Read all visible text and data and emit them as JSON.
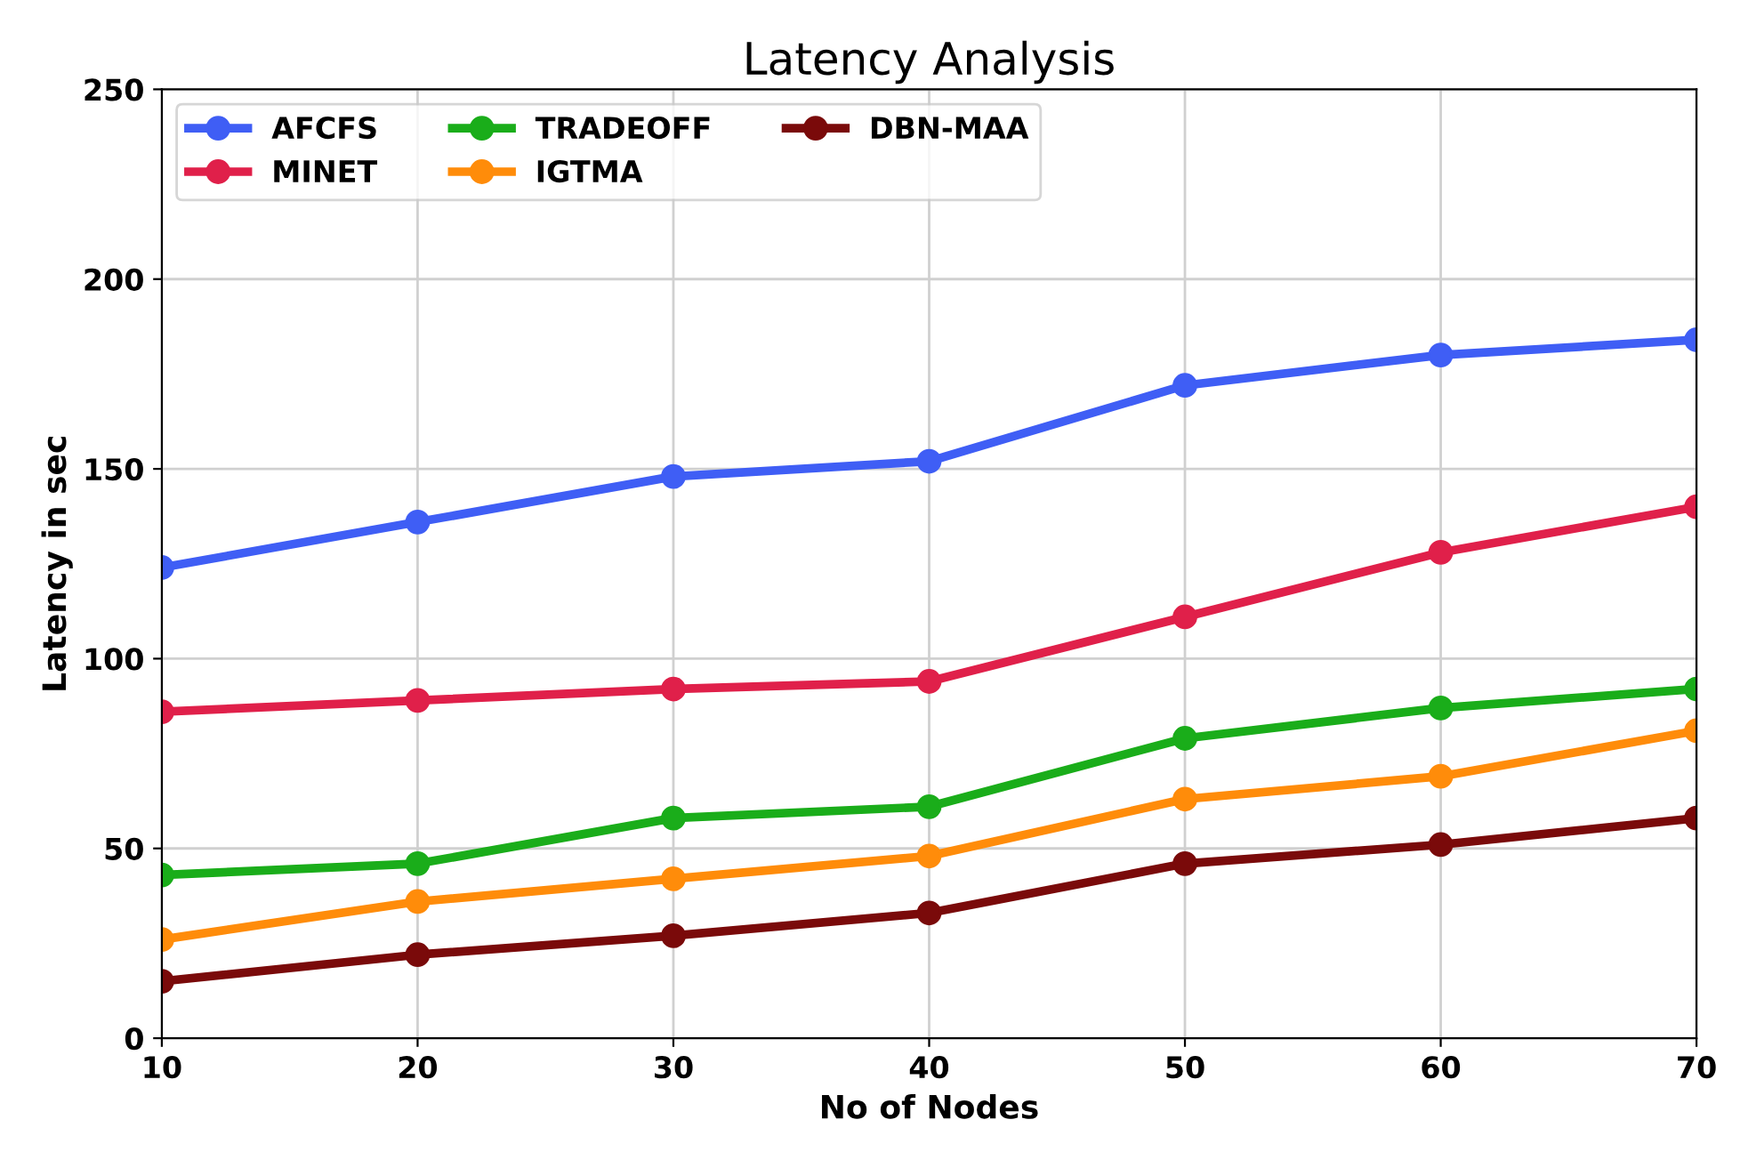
{
  "chart_data": {
    "type": "line",
    "title": "Latency Analysis",
    "xlabel": "No of Nodes",
    "ylabel": "Latency in sec",
    "x": [
      10,
      20,
      30,
      40,
      50,
      60,
      70
    ],
    "series": [
      {
        "name": "AFCFS",
        "color": "#3f5ef5",
        "values": [
          124,
          136,
          148,
          152,
          172,
          180,
          184
        ]
      },
      {
        "name": "MINET",
        "color": "#e0204a",
        "values": [
          86,
          89,
          92,
          94,
          111,
          128,
          140
        ]
      },
      {
        "name": "TRADEOFF",
        "color": "#1aad1a",
        "values": [
          43,
          46,
          58,
          61,
          79,
          87,
          92
        ]
      },
      {
        "name": "IGTMA",
        "color": "#ff8c0a",
        "values": [
          26,
          36,
          42,
          48,
          63,
          69,
          81
        ]
      },
      {
        "name": "DBN-MAA",
        "color": "#7a0a0a",
        "values": [
          15,
          22,
          27,
          33,
          46,
          51,
          58
        ]
      }
    ],
    "xlim": [
      10,
      70
    ],
    "xticks": [
      10,
      20,
      30,
      40,
      50,
      60,
      70
    ],
    "ylim": [
      0,
      250
    ],
    "yticks": [
      0,
      50,
      100,
      150,
      200,
      250
    ],
    "grid": true,
    "legend": "top left",
    "marker": "circle",
    "line_style": "solid"
  }
}
